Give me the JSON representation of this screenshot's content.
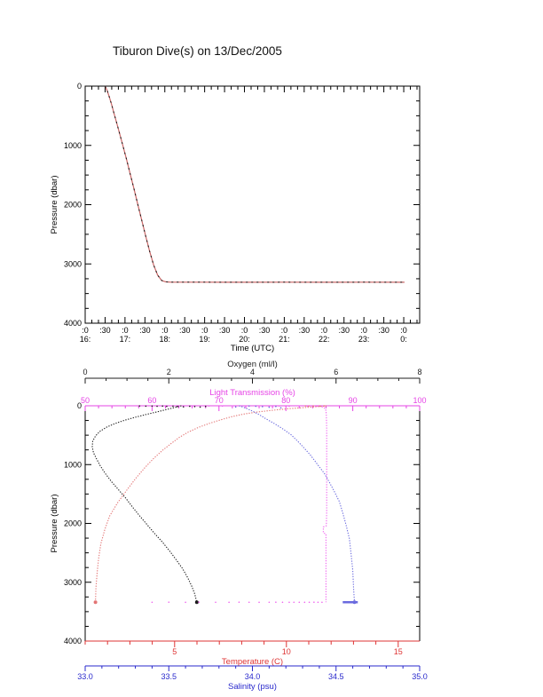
{
  "title": "Tiburon Dive(s) on 13/Dec/2005",
  "colors": {
    "frame": "#000000",
    "dive_line": "#cb6868",
    "dive_overlay": "#141414",
    "oxygen": "#1c1c1c",
    "light": "#e644e6",
    "light_series": "#ef63ef",
    "temperature": "#df3535",
    "temperature_series": "#e37474",
    "salinity": "#2828cc",
    "salinity_series": "#6a6ade"
  },
  "chart_data": [
    {
      "type": "line",
      "name": "dive-depth-vs-time",
      "xlabel": "Time (UTC)",
      "ylabel": "Pressure (dbar)",
      "x_range": [
        16.0,
        24.4
      ],
      "x_minor_step": 0.1666667,
      "y_range": [
        0,
        4000
      ],
      "y_reversed": true,
      "y_minor_step": 250,
      "x_ticks": [
        {
          "v": 16.0,
          "m": ":0",
          "h": "16:"
        },
        {
          "v": 16.5,
          "m": ":30"
        },
        {
          "v": 17.0,
          "m": ":0",
          "h": "17:"
        },
        {
          "v": 17.5,
          "m": ":30"
        },
        {
          "v": 18.0,
          "m": ":0",
          "h": "18:"
        },
        {
          "v": 18.5,
          "m": ":30"
        },
        {
          "v": 19.0,
          "m": ":0",
          "h": "19:"
        },
        {
          "v": 19.5,
          "m": ":30"
        },
        {
          "v": 20.0,
          "m": ":0",
          "h": "20:"
        },
        {
          "v": 20.5,
          "m": ":30"
        },
        {
          "v": 21.0,
          "m": ":0",
          "h": "21:"
        },
        {
          "v": 21.5,
          "m": ":30"
        },
        {
          "v": 22.0,
          "m": ":0",
          "h": "22:"
        },
        {
          "v": 22.5,
          "m": ":30"
        },
        {
          "v": 23.0,
          "m": ":0",
          "h": "23:"
        },
        {
          "v": 23.5,
          "m": ":30"
        },
        {
          "v": 24.0,
          "m": ":0",
          "h": "0:"
        }
      ],
      "y_ticks": [
        {
          "v": 0,
          "l": "0"
        },
        {
          "v": 1000,
          "l": "1000"
        },
        {
          "v": 2000,
          "l": "2000"
        },
        {
          "v": 3000,
          "l": "3000"
        },
        {
          "v": 4000,
          "l": "4000"
        }
      ],
      "series": [
        {
          "name": "dive-pressure-profile",
          "points": [
            [
              16.5,
              0
            ],
            [
              16.55,
              70
            ],
            [
              16.6,
              170
            ],
            [
              16.66,
              300
            ],
            [
              16.72,
              450
            ],
            [
              16.79,
              620
            ],
            [
              16.87,
              810
            ],
            [
              16.95,
              1010
            ],
            [
              17.04,
              1240
            ],
            [
              17.13,
              1480
            ],
            [
              17.22,
              1720
            ],
            [
              17.32,
              1990
            ],
            [
              17.42,
              2260
            ],
            [
              17.52,
              2530
            ],
            [
              17.62,
              2790
            ],
            [
              17.72,
              3020
            ],
            [
              17.82,
              3190
            ],
            [
              17.92,
              3280
            ],
            [
              18.02,
              3302
            ],
            [
              18.15,
              3308
            ],
            [
              19.0,
              3308
            ],
            [
              20.0,
              3309
            ],
            [
              21.0,
              3308
            ],
            [
              22.0,
              3310
            ],
            [
              23.0,
              3308
            ],
            [
              24.02,
              3309
            ]
          ]
        }
      ]
    },
    {
      "type": "line",
      "name": "ctd-profiles-vs-pressure",
      "ylabel": "Pressure (dbar)",
      "y_range": [
        0,
        4000
      ],
      "y_reversed": true,
      "y_minor_step": 250,
      "y_ticks": [
        {
          "v": 0,
          "l": "0"
        },
        {
          "v": 1000,
          "l": "1000"
        },
        {
          "v": 2000,
          "l": "2000"
        },
        {
          "v": 3000,
          "l": "3000"
        },
        {
          "v": 4000,
          "l": "4000"
        }
      ],
      "x_axes": [
        {
          "id": "oxygen",
          "label": "Oxygen (ml/l)",
          "position": "floating-top",
          "range": [
            0,
            8
          ],
          "minor_step": 0.5,
          "ticks": [
            {
              "v": 0,
              "l": "0"
            },
            {
              "v": 2,
              "l": "2"
            },
            {
              "v": 4,
              "l": "4"
            },
            {
              "v": 6,
              "l": "6"
            },
            {
              "v": 8,
              "l": "8"
            }
          ]
        },
        {
          "id": "light",
          "label": "Light Transmission (%)",
          "position": "top",
          "range": [
            50,
            100
          ],
          "minor_step": 2,
          "ticks": [
            {
              "v": 50,
              "l": "50"
            },
            {
              "v": 60,
              "l": "60"
            },
            {
              "v": 70,
              "l": "70"
            },
            {
              "v": 80,
              "l": "80"
            },
            {
              "v": 90,
              "l": "90"
            },
            {
              "v": 100,
              "l": "100"
            }
          ]
        },
        {
          "id": "temperature",
          "label": "Temperature (C)",
          "position": "bottom",
          "range": [
            1,
            15.96
          ],
          "minor_step": 1,
          "ticks": [
            {
              "v": 5,
              "l": "5"
            },
            {
              "v": 10,
              "l": "10"
            },
            {
              "v": 15,
              "l": "15"
            }
          ]
        },
        {
          "id": "salinity",
          "label": "Salinity (psu)",
          "position": "below-bottom",
          "range": [
            33,
            35
          ],
          "minor_step": 0.1,
          "ticks": [
            {
              "v": 33.0,
              "l": "33.0"
            },
            {
              "v": 33.5,
              "l": "33.5"
            },
            {
              "v": 34.0,
              "l": "34.0"
            },
            {
              "v": 34.5,
              "l": "34.5"
            },
            {
              "v": 35.0,
              "l": "35.0"
            }
          ]
        }
      ],
      "series": [
        {
          "name": "oxygen-profile",
          "axis": "oxygen",
          "points": [
            [
              0,
              2.3
            ],
            [
              20,
              2.2
            ],
            [
              45,
              2.05
            ],
            [
              75,
              1.88
            ],
            [
              110,
              1.68
            ],
            [
              150,
              1.45
            ],
            [
              195,
              1.2
            ],
            [
              245,
              0.95
            ],
            [
              300,
              0.72
            ],
            [
              360,
              0.52
            ],
            [
              430,
              0.36
            ],
            [
              510,
              0.25
            ],
            [
              600,
              0.18
            ],
            [
              700,
              0.17
            ],
            [
              800,
              0.2
            ],
            [
              900,
              0.27
            ],
            [
              1020,
              0.36
            ],
            [
              1150,
              0.48
            ],
            [
              1290,
              0.63
            ],
            [
              1430,
              0.8
            ],
            [
              1570,
              0.97
            ],
            [
              1720,
              1.13
            ],
            [
              1870,
              1.3
            ],
            [
              2020,
              1.48
            ],
            [
              2170,
              1.66
            ],
            [
              2320,
              1.85
            ],
            [
              2470,
              2.02
            ],
            [
              2620,
              2.18
            ],
            [
              2770,
              2.33
            ],
            [
              2920,
              2.45
            ],
            [
              3070,
              2.55
            ],
            [
              3200,
              2.62
            ],
            [
              3340,
              2.67
            ]
          ],
          "surface_scatter": [
            [
              3,
              1.3
            ],
            [
              6,
              1.45
            ],
            [
              4,
              1.6
            ],
            [
              8,
              1.72
            ],
            [
              5,
              1.85
            ],
            [
              10,
              1.95
            ],
            [
              7,
              2.1
            ],
            [
              12,
              2.2
            ],
            [
              18,
              2.35
            ],
            [
              9,
              2.5
            ],
            [
              14,
              2.62
            ],
            [
              22,
              2.75
            ],
            [
              11,
              2.88
            ]
          ],
          "end_marker": [
            3340,
            2.67
          ]
        },
        {
          "name": "light-transmission-profile",
          "axis": "light",
          "points": [
            [
              0,
              84.2
            ],
            [
              6,
              84.6
            ],
            [
              14,
              85.2
            ],
            [
              30,
              85.7
            ],
            [
              60,
              85.95
            ],
            [
              150,
              86.05
            ],
            [
              400,
              86.1
            ],
            [
              800,
              86.1
            ],
            [
              1300,
              86.1
            ],
            [
              1800,
              86.1
            ],
            [
              2040,
              86.05
            ],
            [
              2060,
              85.6
            ],
            [
              2160,
              85.6
            ],
            [
              2180,
              86.0
            ],
            [
              2600,
              86.0
            ],
            [
              3000,
              86.0
            ],
            [
              3340,
              86.0
            ]
          ],
          "surface_scatter": [
            [
              3,
              68.5
            ],
            [
              5,
              70.5
            ],
            [
              2,
              72
            ],
            [
              6,
              74
            ],
            [
              4,
              76
            ],
            [
              8,
              77.5
            ],
            [
              3,
              79
            ],
            [
              7,
              80.5
            ],
            [
              5,
              82
            ],
            [
              9,
              83.2
            ]
          ],
          "bottom_scatter": [
            [
              3340,
              60
            ],
            [
              3338,
              62.5
            ],
            [
              3341,
              65
            ],
            [
              3339,
              67
            ],
            [
              3340,
              69.5
            ],
            [
              3341,
              71.5
            ],
            [
              3339,
              73
            ],
            [
              3340,
              74.5
            ],
            [
              3341,
              76
            ],
            [
              3340,
              77.5
            ],
            [
              3339,
              78.5
            ],
            [
              3340,
              79.5
            ],
            [
              3341,
              80.5
            ],
            [
              3340,
              81.2
            ],
            [
              3340,
              82
            ],
            [
              3341,
              82.8
            ],
            [
              3340,
              83.5
            ],
            [
              3339,
              84.2
            ],
            [
              3340,
              84.8
            ],
            [
              3340,
              85.4
            ]
          ]
        },
        {
          "name": "temperature-profile",
          "axis": "temperature",
          "points": [
            [
              0,
              11.8
            ],
            [
              15,
              11.4
            ],
            [
              30,
              10.8
            ],
            [
              50,
              10.1
            ],
            [
              75,
              9.4
            ],
            [
              105,
              8.7
            ],
            [
              140,
              8.1
            ],
            [
              185,
              7.55
            ],
            [
              240,
              7.05
            ],
            [
              300,
              6.55
            ],
            [
              370,
              6.05
            ],
            [
              450,
              5.6
            ],
            [
              540,
              5.2
            ],
            [
              640,
              4.85
            ],
            [
              760,
              4.45
            ],
            [
              900,
              4.05
            ],
            [
              1060,
              3.65
            ],
            [
              1240,
              3.25
            ],
            [
              1440,
              2.85
            ],
            [
              1650,
              2.45
            ],
            [
              1870,
              2.1
            ],
            [
              2100,
              1.88
            ],
            [
              2350,
              1.7
            ],
            [
              2600,
              1.6
            ],
            [
              2850,
              1.53
            ],
            [
              3100,
              1.48
            ],
            [
              3340,
              1.46
            ]
          ],
          "surface_scatter": [
            [
              2,
              11.7
            ],
            [
              4,
              11.5
            ],
            [
              3,
              11.2
            ],
            [
              6,
              11.0
            ],
            [
              2,
              10.85
            ]
          ],
          "end_marker": [
            3340,
            1.46
          ]
        },
        {
          "name": "salinity-profile",
          "axis": "salinity",
          "points": [
            [
              0,
              33.92
            ],
            [
              40,
              33.96
            ],
            [
              90,
              34.0
            ],
            [
              150,
              34.04
            ],
            [
              220,
              34.08
            ],
            [
              300,
              34.13
            ],
            [
              390,
              34.18
            ],
            [
              490,
              34.23
            ],
            [
              600,
              34.27
            ],
            [
              720,
              34.31
            ],
            [
              850,
              34.35
            ],
            [
              1000,
              34.39
            ],
            [
              1150,
              34.43
            ],
            [
              1300,
              34.46
            ],
            [
              1460,
              34.49
            ],
            [
              1630,
              34.52
            ],
            [
              1820,
              34.54
            ],
            [
              2030,
              34.56
            ],
            [
              2260,
              34.58
            ],
            [
              2520,
              34.59
            ],
            [
              2800,
              34.6
            ],
            [
              3100,
              34.605
            ],
            [
              3340,
              34.61
            ]
          ],
          "surface_scatter": [
            [
              4,
              33.98
            ],
            [
              8,
              34.02
            ],
            [
              15,
              34.06
            ],
            [
              25,
              34.1
            ],
            [
              12,
              34.14
            ],
            [
              35,
              34.17
            ],
            [
              20,
              33.9
            ]
          ],
          "bottom_segment": [
            [
              3340,
              34.54
            ],
            [
              3340,
              34.63
            ]
          ],
          "end_marker": [
            3340,
            34.61
          ]
        }
      ]
    }
  ]
}
